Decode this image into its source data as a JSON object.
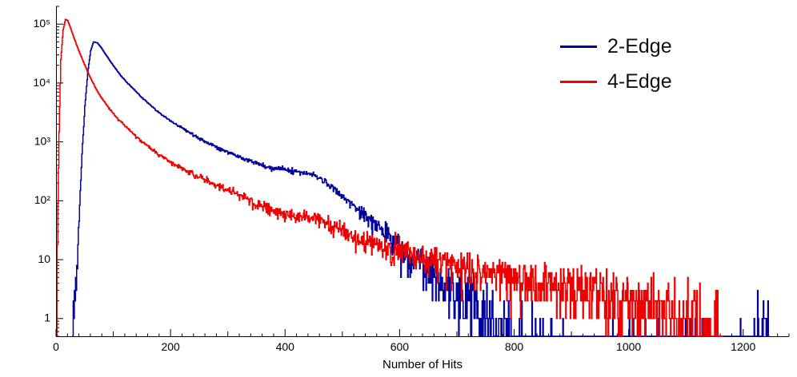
{
  "chart_data": {
    "type": "line",
    "title": "",
    "xlabel": "Number of Hits",
    "ylabel": "",
    "xlim": [
      0,
      1280
    ],
    "ylim": [
      0.5,
      200000
    ],
    "yscale": "log",
    "grid": false,
    "x_ticks": [
      0,
      200,
      400,
      600,
      800,
      1000,
      1200
    ],
    "x_minor_step": 20,
    "x_mid_step": 100,
    "y_ticks": [
      1,
      10,
      100,
      1000,
      10000,
      100000
    ],
    "y_tick_labels": [
      "1",
      "10",
      "10²",
      "10³",
      "10⁴",
      "10⁵"
    ],
    "legend": {
      "position": "top-right"
    },
    "noise_seed": 1337,
    "series": [
      {
        "name": "2-Edge",
        "color": "#00009c",
        "anchors": [
          [
            28,
            0.6
          ],
          [
            35,
            5
          ],
          [
            40,
            60
          ],
          [
            45,
            600
          ],
          [
            50,
            4000
          ],
          [
            55,
            15000
          ],
          [
            60,
            35000
          ],
          [
            65,
            50000
          ],
          [
            72,
            48000
          ],
          [
            80,
            38000
          ],
          [
            90,
            27000
          ],
          [
            100,
            19500
          ],
          [
            115,
            12500
          ],
          [
            130,
            8800
          ],
          [
            150,
            5600
          ],
          [
            175,
            3400
          ],
          [
            200,
            2250
          ],
          [
            225,
            1600
          ],
          [
            250,
            1150
          ],
          [
            275,
            860
          ],
          [
            300,
            660
          ],
          [
            325,
            520
          ],
          [
            350,
            430
          ],
          [
            375,
            370
          ],
          [
            400,
            335
          ],
          [
            420,
            305
          ],
          [
            440,
            285
          ],
          [
            455,
            255
          ],
          [
            470,
            215
          ],
          [
            485,
            165
          ],
          [
            500,
            120
          ],
          [
            515,
            90
          ],
          [
            530,
            66
          ],
          [
            545,
            50
          ],
          [
            560,
            38
          ],
          [
            580,
            26
          ],
          [
            600,
            17
          ],
          [
            620,
            12
          ],
          [
            640,
            8.5
          ],
          [
            660,
            6
          ],
          [
            680,
            4.2
          ],
          [
            700,
            3
          ],
          [
            720,
            2.1
          ],
          [
            740,
            1.4
          ],
          [
            760,
            0.8
          ],
          [
            800,
            0.25
          ],
          [
            850,
            0.12
          ],
          [
            900,
            0.08
          ],
          [
            1000,
            0.06
          ],
          [
            1100,
            0.05
          ],
          [
            1180,
            0.04
          ],
          [
            1215,
            0.05
          ],
          [
            1225,
            0.4
          ],
          [
            1245,
            0.4
          ]
        ]
      },
      {
        "name": "4-Edge",
        "color": "#ee0000",
        "anchors": [
          [
            2,
            20
          ],
          [
            5,
            1500
          ],
          [
            8,
            25000
          ],
          [
            12,
            80000
          ],
          [
            16,
            120000
          ],
          [
            20,
            115000
          ],
          [
            25,
            86000
          ],
          [
            30,
            62000
          ],
          [
            35,
            46000
          ],
          [
            40,
            34000
          ],
          [
            50,
            20000
          ],
          [
            60,
            12000
          ],
          [
            70,
            7800
          ],
          [
            80,
            5400
          ],
          [
            90,
            4000
          ],
          [
            100,
            3000
          ],
          [
            115,
            2100
          ],
          [
            130,
            1500
          ],
          [
            150,
            1000
          ],
          [
            175,
            650
          ],
          [
            200,
            450
          ],
          [
            225,
            330
          ],
          [
            250,
            250
          ],
          [
            275,
            190
          ],
          [
            300,
            150
          ],
          [
            325,
            115
          ],
          [
            350,
            88
          ],
          [
            375,
            72
          ],
          [
            400,
            62
          ],
          [
            420,
            56
          ],
          [
            440,
            53
          ],
          [
            460,
            46
          ],
          [
            480,
            38
          ],
          [
            500,
            30
          ],
          [
            525,
            24
          ],
          [
            550,
            19
          ],
          [
            575,
            15.5
          ],
          [
            600,
            13
          ],
          [
            640,
            10.5
          ],
          [
            680,
            8.5
          ],
          [
            720,
            7
          ],
          [
            760,
            5.8
          ],
          [
            800,
            4.8
          ],
          [
            850,
            4
          ],
          [
            900,
            3.4
          ],
          [
            950,
            2.8
          ],
          [
            1000,
            2.4
          ],
          [
            1050,
            1.9
          ],
          [
            1100,
            1.2
          ],
          [
            1130,
            0.7
          ],
          [
            1155,
            0.3
          ],
          [
            1165,
            0.1
          ]
        ]
      }
    ]
  }
}
